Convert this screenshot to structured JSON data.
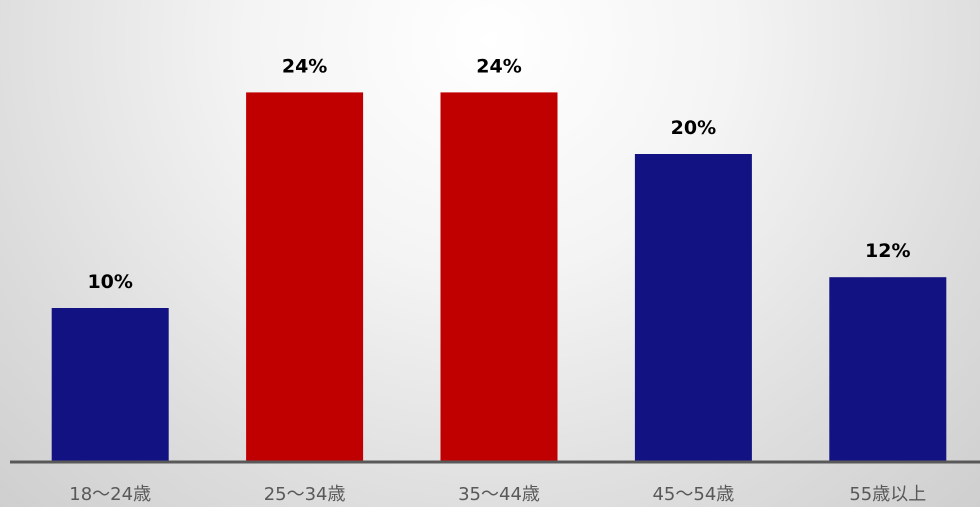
{
  "chart_data": {
    "type": "bar",
    "categories": [
      "18〜24歳",
      "25〜34歳",
      "35〜44歳",
      "45〜54歳",
      "55歳以上"
    ],
    "values": [
      10,
      24,
      24,
      20,
      12
    ],
    "value_labels": [
      "10%",
      "24%",
      "24%",
      "20%",
      "12%"
    ],
    "bar_colors": [
      "#131283",
      "#c00000",
      "#c00000",
      "#131283",
      "#131283"
    ],
    "axis_color": "#595959",
    "title": "",
    "xlabel": "",
    "ylabel": "",
    "ylim": [
      0,
      30
    ],
    "grid": false,
    "legend": "none"
  }
}
